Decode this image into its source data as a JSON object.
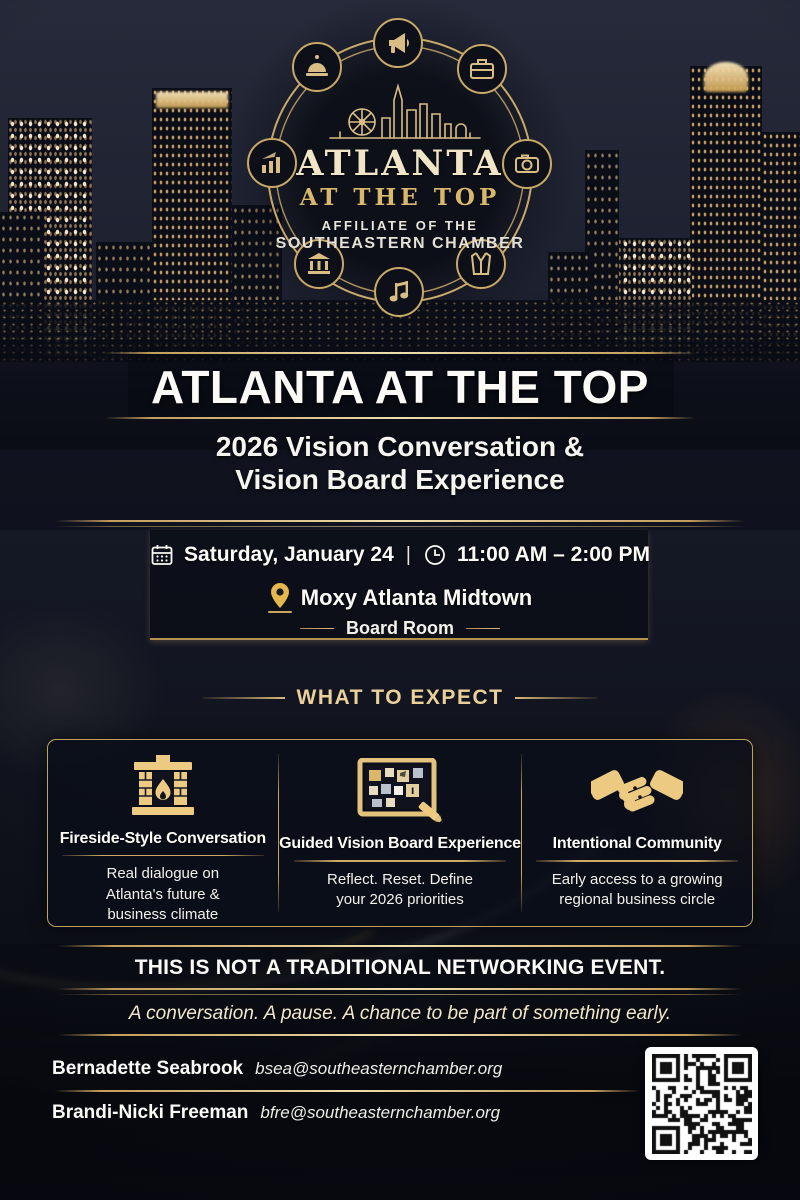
{
  "badge": {
    "brand_top": "ATLANTA",
    "brand_bottom": "AT THE TOP",
    "affiliate_line1": "AFFILIATE OF THE",
    "affiliate_line2": "SOUTHEASTERN CHAMBER",
    "ring_icons": [
      "megaphone-icon",
      "briefcase-icon",
      "camera-icon",
      "suit-icon",
      "music-note-icon",
      "bank-icon",
      "bar-chart-icon",
      "dome-icon"
    ]
  },
  "title": "ATLANTA AT THE TOP",
  "subtitle_line1": "2026 Vision Conversation &",
  "subtitle_line2": "Vision Board Experience",
  "event": {
    "date": "Saturday, January 24",
    "separator": "|",
    "time": "11:00 AM – 2:00 PM",
    "venue": "Moxy Atlanta Midtown",
    "room": "Board Room"
  },
  "expect": {
    "heading": "WHAT TO EXPECT",
    "items": [
      {
        "icon": "fireplace-icon",
        "title": "Fireside-Style Conversation",
        "description": "Real dialogue on Atlanta's future & business climate"
      },
      {
        "icon": "vision-board-icon",
        "title": "Guided Vision Board Experience",
        "description": "Reflect. Reset. Define your 2026 priorities"
      },
      {
        "icon": "handshake-icon",
        "title": "Intentional Community",
        "description": "Early access to a growing regional business circle"
      }
    ]
  },
  "statement": "THIS IS NOT A TRADITIONAL NETWORKING EVENT.",
  "tagline": "A conversation. A pause. A chance to be part of something early.",
  "contacts": [
    {
      "name": "Bernadette Seabrook",
      "email": "bsea@southeasternchamber.org"
    },
    {
      "name": "Brandi-Nicki Freeman",
      "email": "bfre@southeasternchamber.org"
    }
  ],
  "qr_label": "qr-code",
  "colors": {
    "gold": "#d4af6a",
    "gold_bright": "#eedfae",
    "cream": "#f2e7ca",
    "white": "#fbfaf7",
    "navy_dark": "#0d1019",
    "sky": "#262a3a"
  }
}
